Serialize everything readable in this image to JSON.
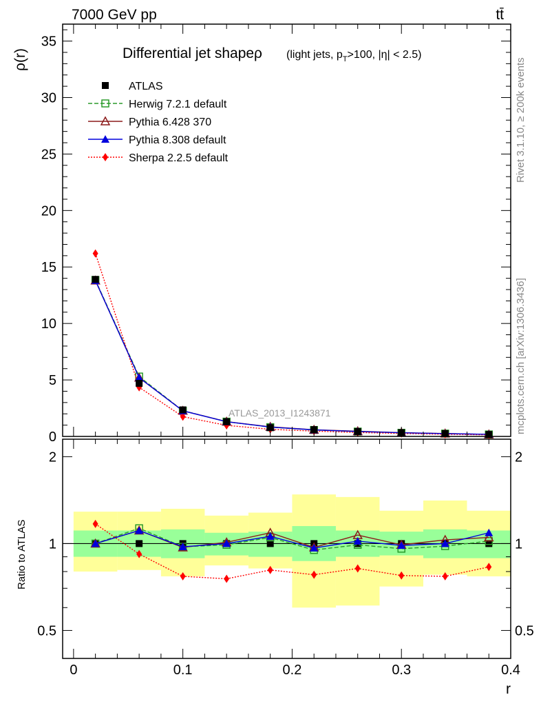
{
  "header": {
    "energy": "7000 GeV pp",
    "process": "tt̄"
  },
  "side_labels": {
    "rivet": "Rivet 3.1.10, ≥ 200k events",
    "mcplots": "mcplots.cern.ch [arXiv:1306.3436]"
  },
  "colors": {
    "atlas": "#000000",
    "herwig": "#2a9a2a",
    "pythia6": "#8b1a1a",
    "pythia8": "#0000dd",
    "sherpa": "#ff0000",
    "band_inner": "#99ff99",
    "band_outer": "#ffff99"
  },
  "chart_data": {
    "type": "line",
    "title": "Differential jet shapeρ",
    "title_suffix": "(light jets, p",
    "title_sub": "T",
    "title_tail": ">100, |η| < 2.5)",
    "analysis_tag": "ATLAS_2013_I1243871",
    "ylabel": "ρ(r)",
    "xlabel": "r",
    "ratio_ylabel": "Ratio to ATLAS",
    "xlim": [
      -0.01,
      0.4
    ],
    "ylim": [
      0,
      36.5
    ],
    "ratio_ylim": [
      0.4,
      2.3
    ],
    "x_ticks": [
      "0",
      "0.1",
      "0.2",
      "0.3",
      "0.4"
    ],
    "y_ticks": [
      "0",
      "5",
      "10",
      "15",
      "20",
      "25",
      "30",
      "35"
    ],
    "ratio_ticks": [
      "0.5",
      "1",
      "2"
    ],
    "x": [
      0.02,
      0.06,
      0.1,
      0.14,
      0.18,
      0.22,
      0.26,
      0.3,
      0.34,
      0.38
    ],
    "bin_edges": [
      0.0,
      0.04,
      0.08,
      0.12,
      0.16,
      0.2,
      0.24,
      0.28,
      0.32,
      0.36,
      0.4
    ],
    "series": [
      {
        "name": "ATLAS",
        "key": "atlas",
        "values": [
          13.9,
          4.7,
          2.35,
          1.3,
          0.78,
          0.6,
          0.43,
          0.33,
          0.25,
          0.17
        ]
      },
      {
        "name": "Herwig 7.2.1 default",
        "key": "herwig",
        "values": [
          13.85,
          5.3,
          2.28,
          1.31,
          0.82,
          0.57,
          0.43,
          0.32,
          0.25,
          0.175
        ]
      },
      {
        "name": "Pythia 6.428 370",
        "key": "pythia6",
        "values": [
          13.8,
          5.2,
          2.27,
          1.31,
          0.85,
          0.59,
          0.46,
          0.33,
          0.26,
          0.18
        ]
      },
      {
        "name": "Pythia 8.308 default",
        "key": "pythia8",
        "values": [
          13.8,
          5.2,
          2.27,
          1.3,
          0.83,
          0.58,
          0.44,
          0.325,
          0.25,
          0.185
        ]
      },
      {
        "name": "Sherpa 2.2.5 default",
        "key": "sherpa",
        "values": [
          16.2,
          4.35,
          1.75,
          0.98,
          0.63,
          0.47,
          0.35,
          0.26,
          0.19,
          0.14
        ]
      }
    ],
    "ratios": {
      "herwig": [
        1.0,
        1.13,
        0.975,
        0.99,
        1.05,
        0.95,
        0.99,
        0.96,
        0.98,
        1.02
      ],
      "pythia6": [
        1.0,
        1.11,
        0.97,
        1.01,
        1.09,
        0.97,
        1.07,
        0.99,
        1.03,
        1.05
      ],
      "pythia8": [
        1.0,
        1.11,
        0.975,
        1.0,
        1.06,
        0.965,
        1.02,
        0.985,
        1.0,
        1.09
      ],
      "sherpa": [
        1.17,
        0.92,
        0.77,
        0.755,
        0.81,
        0.78,
        0.82,
        0.775,
        0.77,
        0.83
      ]
    },
    "band_inner": [
      [
        0.9,
        1.11
      ],
      [
        0.9,
        1.11
      ],
      [
        0.89,
        1.12
      ],
      [
        0.91,
        1.09
      ],
      [
        0.9,
        1.1
      ],
      [
        0.87,
        1.15
      ],
      [
        0.9,
        1.11
      ],
      [
        0.91,
        1.1
      ],
      [
        0.89,
        1.12
      ],
      [
        0.89,
        1.11
      ]
    ],
    "band_outer": [
      [
        0.8,
        1.29
      ],
      [
        0.81,
        1.29
      ],
      [
        0.77,
        1.32
      ],
      [
        0.84,
        1.25
      ],
      [
        0.82,
        1.28
      ],
      [
        0.6,
        1.48
      ],
      [
        0.61,
        1.45
      ],
      [
        0.71,
        1.3
      ],
      [
        0.78,
        1.41
      ],
      [
        0.77,
        1.3
      ]
    ],
    "legend_position": "top-left"
  }
}
